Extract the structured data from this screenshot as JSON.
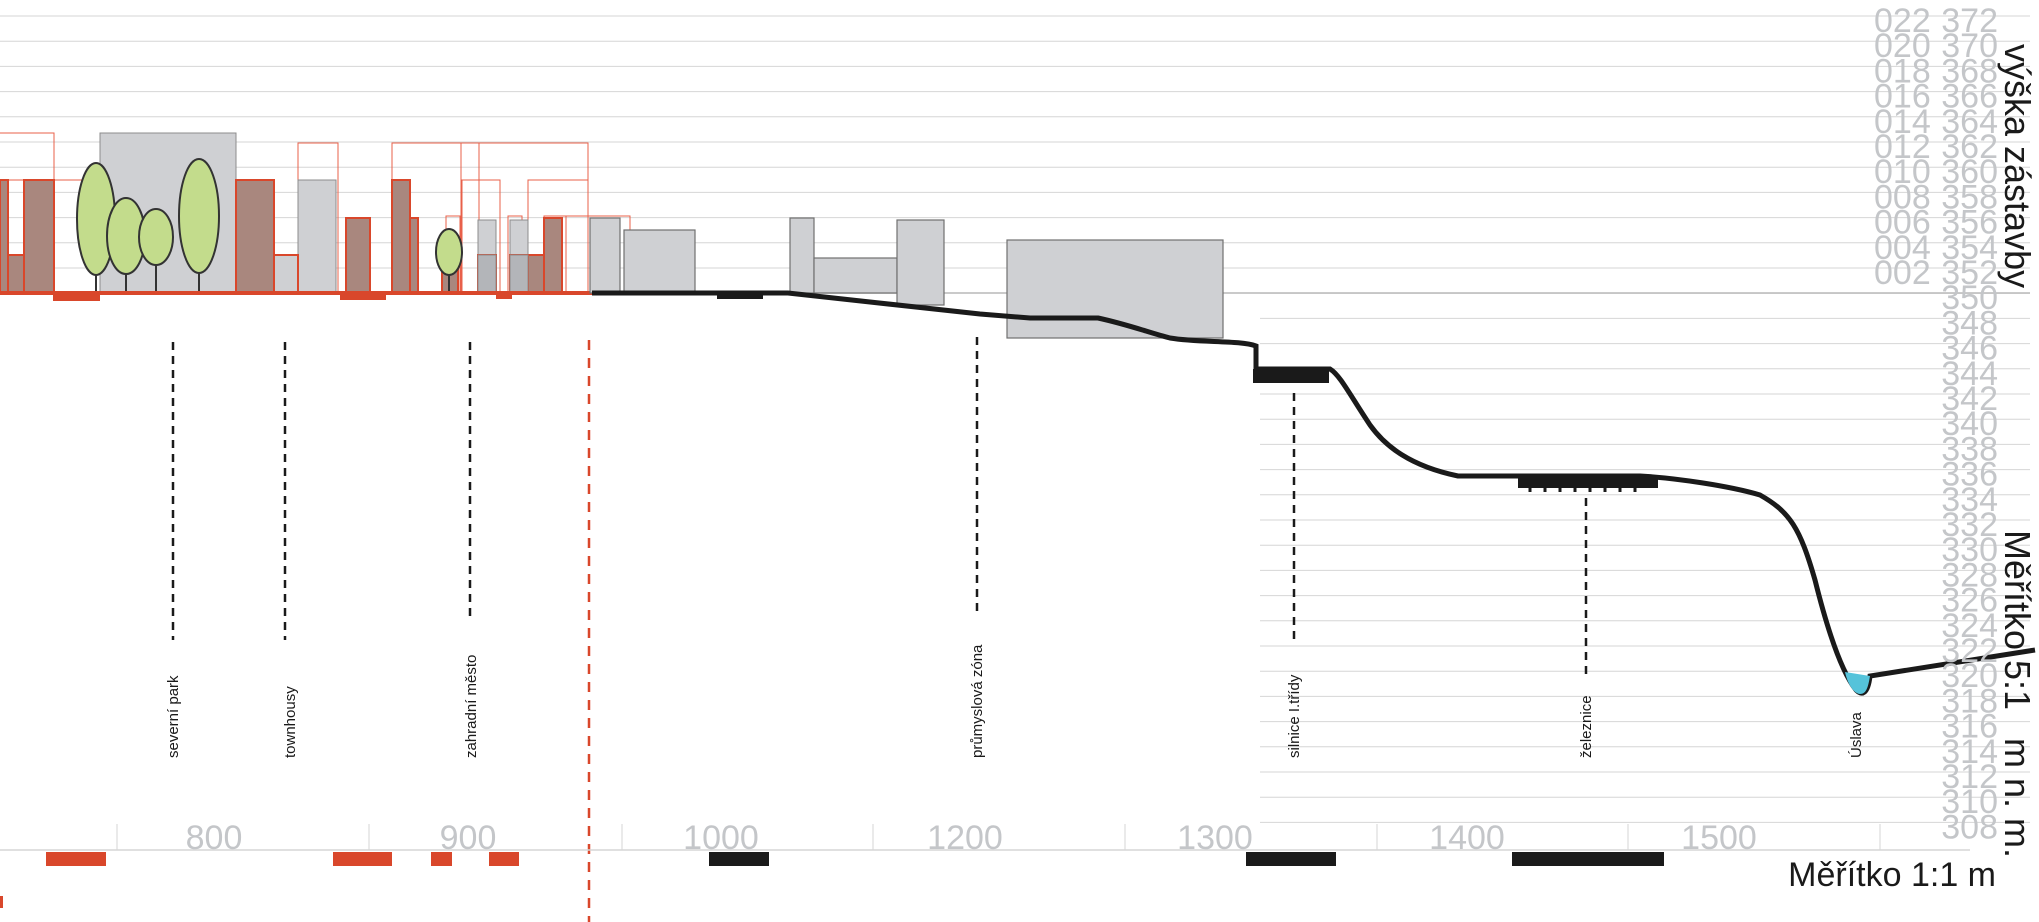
{
  "titles": {
    "vyska": "výška zástavby",
    "meritko_vertical": "Měřítko 5:1",
    "units_vertical": "m n. m.",
    "meritko_horizontal": "Měřítko 1:1 m"
  },
  "height_scale": [
    "022",
    "020",
    "018",
    "016",
    "014",
    "012",
    "010",
    "008",
    "006",
    "004",
    "002"
  ],
  "elevation_scale": [
    "372",
    "370",
    "368",
    "366",
    "364",
    "362",
    "360",
    "358",
    "356",
    "354",
    "352",
    "350",
    "348",
    "346",
    "344",
    "342",
    "340",
    "338",
    "336",
    "334",
    "332",
    "330",
    "328",
    "326",
    "324",
    "322",
    "320",
    "318",
    "316",
    "314",
    "312",
    "310",
    "308"
  ],
  "distance_scale": [
    "800",
    "900",
    "1000",
    "1200",
    "1300",
    "1400",
    "1500"
  ],
  "zones": [
    "severní park",
    "townhousy",
    "zahradní město",
    "průmyslová zóna",
    "silnice I.třídy",
    "železnice",
    "Úslava"
  ],
  "colors": {
    "grid": "#d6d6d6",
    "label_gray": "#c4c6c9",
    "proposal_red": "#d9472b",
    "building_gray": "#cfd0d3",
    "tree_green": "#c3dc8c",
    "water_blue": "#55c3da",
    "terrain": "#1a1a1a"
  }
}
